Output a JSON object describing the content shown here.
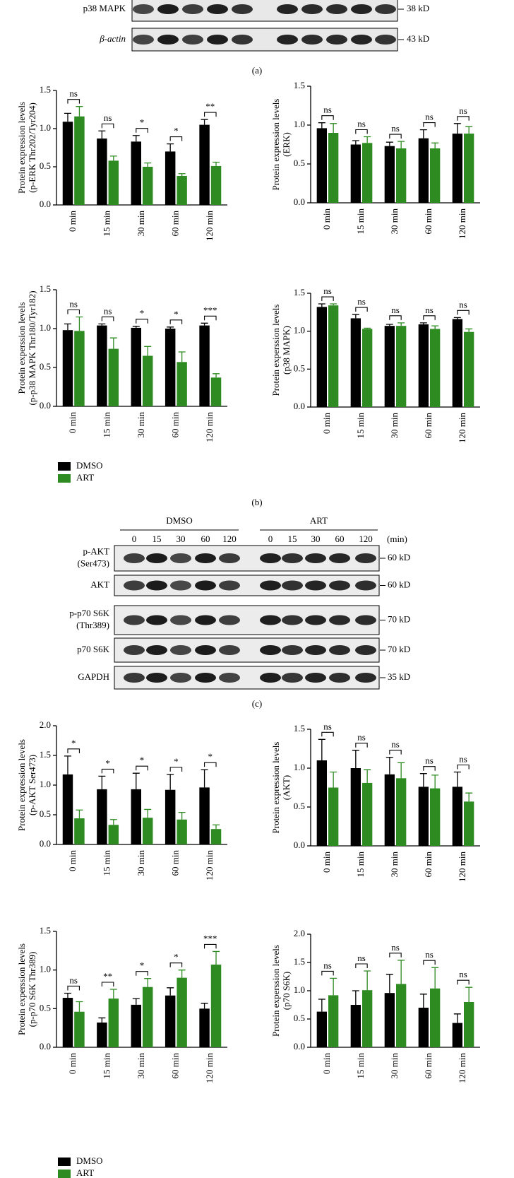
{
  "panels": [
    "(a)",
    "(b)",
    "(c)"
  ],
  "blots": {
    "a": {
      "rows": [
        {
          "label": "p38 MAPK",
          "size": "38 kD"
        },
        {
          "label": "β-actin",
          "size": "43 kD"
        }
      ]
    },
    "c": {
      "groups": [
        "DMSO",
        "ART"
      ],
      "times": [
        "0",
        "15",
        "30",
        "60",
        "120"
      ],
      "unit": "(min)",
      "rows": [
        {
          "label": [
            "p-AKT",
            "(Ser473)"
          ],
          "size": "60 kD"
        },
        {
          "label": [
            "AKT"
          ],
          "size": "60 kD"
        },
        {
          "label": [
            "p-p70 S6K",
            "(Thr389)"
          ],
          "size": "70 kD"
        },
        {
          "label": [
            "p70 S6K"
          ],
          "size": "70 kD"
        },
        {
          "label": [
            "GAPDH"
          ],
          "size": "35 kD"
        }
      ]
    }
  },
  "chart_data": [
    {
      "type": "bar",
      "ylabel": [
        "Protein expression levels",
        "(p-ERK Thr202/Tyr204)"
      ],
      "categories": [
        "0 min",
        "15 min",
        "30 min",
        "60 min",
        "120 min"
      ],
      "series": [
        {
          "name": "DMSO",
          "color": "#000000",
          "values": [
            1.09,
            0.87,
            0.83,
            0.7,
            1.05
          ],
          "errors": [
            0.11,
            0.1,
            0.08,
            0.1,
            0.07
          ]
        },
        {
          "name": "ART",
          "color": "#2e8b22",
          "values": [
            1.16,
            0.58,
            0.5,
            0.38,
            0.51
          ],
          "errors": [
            0.13,
            0.06,
            0.05,
            0.03,
            0.05
          ]
        }
      ],
      "annotations": [
        "ns",
        "ns",
        "*",
        "*",
        "**"
      ],
      "ylim": [
        0,
        1.5
      ],
      "yticks": [
        {
          "value": 0,
          "label": "0.0"
        },
        {
          "value": 0.5,
          "label": "0.5"
        },
        {
          "value": 1,
          "label": "1.0"
        },
        {
          "value": 1.5,
          "label": "1.5"
        }
      ]
    },
    {
      "type": "bar",
      "ylabel": [
        "Protein expression levels",
        "(ERK)"
      ],
      "categories": [
        "0 min",
        "15 min",
        "30 min",
        "60 min",
        "120 min"
      ],
      "series": [
        {
          "name": "DMSO",
          "color": "#000000",
          "values": [
            0.96,
            0.75,
            0.73,
            0.83,
            0.89
          ],
          "errors": [
            0.07,
            0.05,
            0.05,
            0.11,
            0.13
          ]
        },
        {
          "name": "ART",
          "color": "#2e8b22",
          "values": [
            0.9,
            0.77,
            0.7,
            0.7,
            0.89
          ],
          "errors": [
            0.12,
            0.08,
            0.09,
            0.07,
            0.09
          ]
        }
      ],
      "annotations": [
        "ns",
        "ns",
        "ns",
        "ns",
        "ns"
      ],
      "ylim": [
        0,
        1.5
      ],
      "yticks": [
        {
          "value": 0,
          "label": "0.0"
        },
        {
          "value": 0.5,
          "label": "0.5"
        },
        {
          "value": 1,
          "label": "1.0"
        },
        {
          "value": 1.5,
          "label": "1.5"
        }
      ]
    },
    {
      "type": "bar",
      "ylabel": [
        "Protein experssion levels",
        "(p-p38 MAPK Thr180/Tyr182)"
      ],
      "categories": [
        "0 min",
        "15 min",
        "30 min",
        "60 min",
        "120 min"
      ],
      "series": [
        {
          "name": "DMSO",
          "color": "#000000",
          "values": [
            0.98,
            1.04,
            1.01,
            1.0,
            1.04
          ],
          "errors": [
            0.08,
            0.02,
            0.02,
            0.02,
            0.03
          ]
        },
        {
          "name": "ART",
          "color": "#2e8b22",
          "values": [
            0.97,
            0.74,
            0.65,
            0.57,
            0.37
          ],
          "errors": [
            0.18,
            0.14,
            0.12,
            0.13,
            0.05
          ]
        }
      ],
      "annotations": [
        "ns",
        "ns",
        "*",
        "*",
        "***"
      ],
      "legend": "bottom-left",
      "ylim": [
        0,
        1.5
      ],
      "yticks": [
        {
          "value": 0,
          "label": "0.0"
        },
        {
          "value": 0.5,
          "label": "0.5"
        },
        {
          "value": 1,
          "label": "1.0"
        },
        {
          "value": 1.5,
          "label": "1.5"
        }
      ]
    },
    {
      "type": "bar",
      "ylabel": [
        "Protein experssion levels",
        "(p38 MAPK)"
      ],
      "categories": [
        "0 min",
        "15 min",
        "30 min",
        "60 min",
        "120 min"
      ],
      "series": [
        {
          "name": "DMSO",
          "color": "#000000",
          "values": [
            1.32,
            1.17,
            1.07,
            1.09,
            1.16
          ],
          "errors": [
            0.04,
            0.05,
            0.02,
            0.02,
            0.02
          ]
        },
        {
          "name": "ART",
          "color": "#2e8b22",
          "values": [
            1.34,
            1.03,
            1.07,
            1.03,
            0.99
          ],
          "errors": [
            0.02,
            0.01,
            0.04,
            0.04,
            0.04
          ]
        }
      ],
      "annotations": [
        "ns",
        "ns",
        "ns",
        "ns",
        "ns"
      ],
      "ylim": [
        0,
        1.5
      ],
      "yticks": [
        {
          "value": 0,
          "label": "0.0"
        },
        {
          "value": 0.5,
          "label": "0.5"
        },
        {
          "value": 1,
          "label": "1.0"
        },
        {
          "value": 1.5,
          "label": "1.5"
        }
      ]
    },
    {
      "type": "bar",
      "ylabel": [
        "Protein expression levels",
        "(p-AKT Ser473)"
      ],
      "categories": [
        "0 min",
        "15 min",
        "30 min",
        "60 min",
        "120 min"
      ],
      "series": [
        {
          "name": "DMSO",
          "color": "#000000",
          "values": [
            1.18,
            0.93,
            0.93,
            0.92,
            0.96
          ],
          "errors": [
            0.31,
            0.22,
            0.27,
            0.26,
            0.3
          ]
        },
        {
          "name": "ART",
          "color": "#2e8b22",
          "values": [
            0.44,
            0.33,
            0.45,
            0.42,
            0.26
          ],
          "errors": [
            0.14,
            0.09,
            0.14,
            0.12,
            0.07
          ]
        }
      ],
      "annotations": [
        "*",
        "*",
        "*",
        "*",
        "*"
      ],
      "ylim": [
        0,
        2
      ],
      "yticks": [
        {
          "value": 0,
          "label": "0.0"
        },
        {
          "value": 0.5,
          "label": "0.5"
        },
        {
          "value": 1,
          "label": "1.0"
        },
        {
          "value": 1.5,
          "label": "1.5"
        },
        {
          "value": 2,
          "label": "2.0"
        }
      ]
    },
    {
      "type": "bar",
      "ylabel": [
        "Protein expression levels",
        "(AKT)"
      ],
      "categories": [
        "0 min",
        "15 min",
        "30 min",
        "60 min",
        "120 min"
      ],
      "series": [
        {
          "name": "DMSO",
          "color": "#000000",
          "values": [
            1.1,
            1.0,
            0.92,
            0.76,
            0.76
          ],
          "errors": [
            0.27,
            0.23,
            0.22,
            0.17,
            0.19
          ]
        },
        {
          "name": "ART",
          "color": "#2e8b22",
          "values": [
            0.75,
            0.81,
            0.87,
            0.74,
            0.57
          ],
          "errors": [
            0.2,
            0.17,
            0.2,
            0.17,
            0.11
          ]
        }
      ],
      "annotations": [
        "ns",
        "ns",
        "ns",
        "ns",
        "ns"
      ],
      "ylim": [
        0,
        1.5
      ],
      "yticks": [
        {
          "value": 0,
          "label": "0.0"
        },
        {
          "value": 0.5,
          "label": "0.5"
        },
        {
          "value": 1,
          "label": "1.0"
        },
        {
          "value": 1.5,
          "label": "1.5"
        }
      ]
    },
    {
      "type": "bar",
      "ylabel": [
        "Protein experssion levels",
        "(p-p70 S6K Thr389)"
      ],
      "categories": [
        "0 min",
        "15 min",
        "30 min",
        "60 min",
        "120 min"
      ],
      "series": [
        {
          "name": "DMSO",
          "color": "#000000",
          "values": [
            0.64,
            0.32,
            0.55,
            0.67,
            0.5
          ],
          "errors": [
            0.06,
            0.06,
            0.08,
            0.1,
            0.07
          ]
        },
        {
          "name": "ART",
          "color": "#2e8b22",
          "values": [
            0.46,
            0.63,
            0.78,
            0.9,
            1.07
          ],
          "errors": [
            0.13,
            0.12,
            0.11,
            0.1,
            0.17
          ]
        }
      ],
      "annotations": [
        "ns",
        "**",
        "*",
        "*",
        "***"
      ],
      "legend": "bottom-left",
      "ylim": [
        0,
        1.5
      ],
      "yticks": [
        {
          "value": 0,
          "label": "0.0"
        },
        {
          "value": 0.5,
          "label": "0.5"
        },
        {
          "value": 1,
          "label": "1.0"
        },
        {
          "value": 1.5,
          "label": "1.5"
        }
      ]
    },
    {
      "type": "bar",
      "ylabel": [
        "Protein experssion levels",
        "(p70 S6K)"
      ],
      "categories": [
        "0 min",
        "15 min",
        "30 min",
        "60 min",
        "120 min"
      ],
      "series": [
        {
          "name": "DMSO",
          "color": "#000000",
          "values": [
            0.63,
            0.75,
            0.96,
            0.7,
            0.43
          ],
          "errors": [
            0.22,
            0.25,
            0.33,
            0.24,
            0.16
          ]
        },
        {
          "name": "ART",
          "color": "#2e8b22",
          "values": [
            0.92,
            1.01,
            1.12,
            1.04,
            0.8
          ],
          "errors": [
            0.3,
            0.34,
            0.42,
            0.37,
            0.26
          ]
        }
      ],
      "annotations": [
        "ns",
        "ns",
        "ns",
        "ns",
        "ns"
      ],
      "ylim": [
        0,
        2
      ],
      "yticks": [
        {
          "value": 0,
          "label": "0.0"
        },
        {
          "value": 0.5,
          "label": "0.5"
        },
        {
          "value": 1,
          "label": "1.0"
        },
        {
          "value": 1.5,
          "label": "1.5"
        },
        {
          "value": 2,
          "label": "2.0"
        }
      ]
    }
  ]
}
